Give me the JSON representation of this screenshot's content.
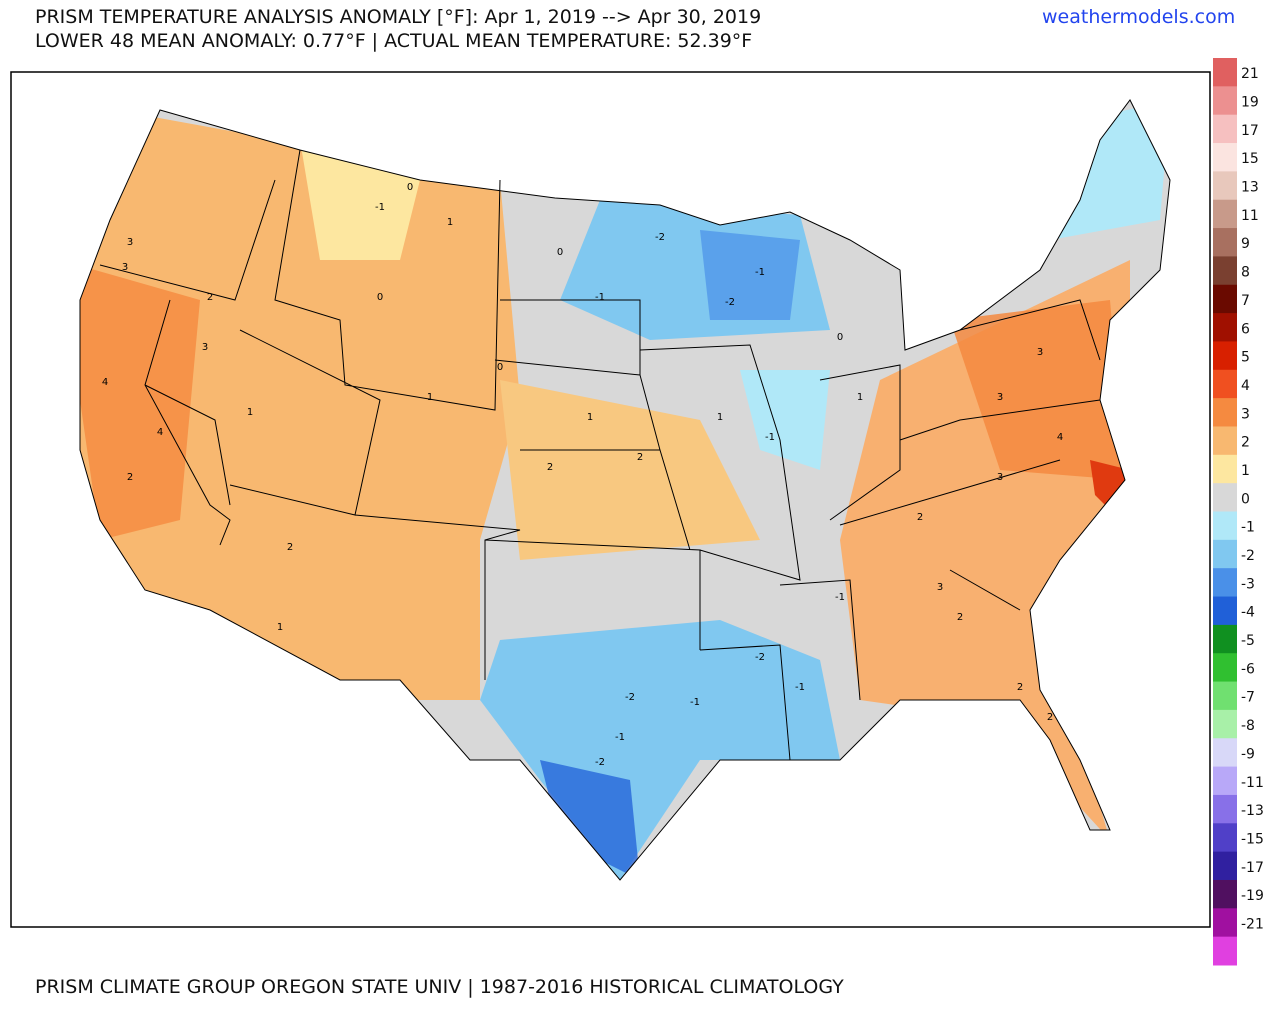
{
  "header": {
    "title": "PRISM TEMPERATURE ANALYSIS ANOMALY [°F]: Apr 1, 2019 --> Apr 30, 2019",
    "subtitle": "LOWER 48 MEAN ANOMALY: 0.77°F | ACTUAL MEAN TEMPERATURE: 52.39°F",
    "site": "weathermodels.com"
  },
  "footer": "PRISM CLIMATE GROUP OREGON STATE UNIV | 1987-2016 HISTORICAL CLIMATOLOGY",
  "colorbar": {
    "labels": [
      21,
      19,
      17,
      15,
      13,
      11,
      9,
      8,
      7,
      6,
      5,
      4,
      3,
      2,
      1,
      0,
      -1,
      -2,
      -3,
      -4,
      -5,
      -6,
      -7,
      -8,
      -9,
      -11,
      -13,
      -15,
      -17,
      -19,
      -21
    ],
    "colors": [
      "#e06060",
      "#ec9090",
      "#f6c0c0",
      "#fbe4e0",
      "#e8c8bc",
      "#c89a8a",
      "#a87060",
      "#7a4030",
      "#6a0a00",
      "#a01000",
      "#d82000",
      "#f05020",
      "#f58a40",
      "#f8b870",
      "#fde7a0",
      "#d8d8d8",
      "#b0e8f8",
      "#80c8f0",
      "#4a90e8",
      "#2060d8",
      "#109020",
      "#30c030",
      "#70e070",
      "#a8f0a8",
      "#d8d8f8",
      "#b8a8f8",
      "#8870e8",
      "#5040c8",
      "#3020a0",
      "#501060",
      "#a010a0",
      "#e040e0"
    ]
  },
  "map_labels": [
    3,
    3,
    4,
    4,
    2,
    2,
    3,
    1,
    2,
    1,
    0,
    1,
    -1,
    -2,
    -2,
    -1,
    0,
    0,
    -1,
    1,
    2,
    2,
    1,
    -1,
    0,
    -2,
    -2,
    -1,
    -2,
    -1,
    1,
    2,
    3,
    3,
    4,
    3,
    2,
    3,
    2,
    2,
    -1,
    -1,
    1,
    0
  ]
}
